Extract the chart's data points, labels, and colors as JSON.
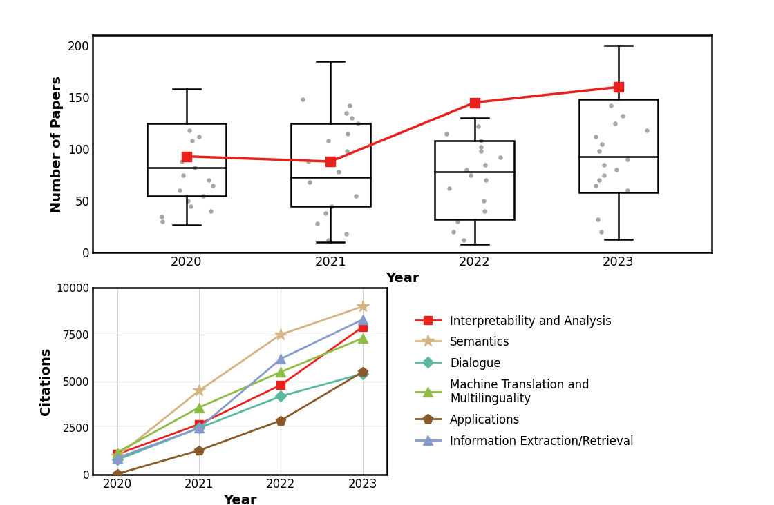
{
  "years": [
    2020,
    2021,
    2022,
    2023
  ],
  "box_data": {
    "2020": {
      "whislo": 27,
      "q1": 55,
      "med": 82,
      "q3": 125,
      "whishi": 158,
      "fliers": [
        118,
        112,
        108,
        95,
        88,
        82,
        75,
        70,
        65,
        60,
        55,
        50,
        45,
        40,
        35,
        30
      ]
    },
    "2021": {
      "whislo": 10,
      "q1": 45,
      "med": 73,
      "q3": 125,
      "whishi": 185,
      "fliers": [
        148,
        142,
        135,
        130,
        125,
        115,
        108,
        98,
        88,
        78,
        68,
        55,
        45,
        38,
        28,
        18,
        12
      ]
    },
    "2022": {
      "whislo": 8,
      "q1": 32,
      "med": 78,
      "q3": 108,
      "whishi": 130,
      "fliers": [
        122,
        115,
        108,
        102,
        98,
        92,
        85,
        80,
        75,
        70,
        62,
        50,
        40,
        30,
        20,
        12
      ]
    },
    "2023": {
      "whislo": 13,
      "q1": 58,
      "med": 93,
      "q3": 148,
      "whishi": 200,
      "fliers": [
        142,
        132,
        125,
        118,
        112,
        105,
        98,
        90,
        85,
        80,
        75,
        70,
        65,
        60,
        32,
        20
      ]
    }
  },
  "red_line_values": [
    93,
    88,
    145,
    160
  ],
  "citations": {
    "Interpretability and Analysis": {
      "color": "#e8211d",
      "marker": "s",
      "values": [
        1100,
        2700,
        4800,
        7900
      ]
    },
    "Semantics": {
      "color": "#d4b483",
      "marker": "*",
      "values": [
        1000,
        4500,
        7500,
        9000
      ]
    },
    "Dialogue": {
      "color": "#5bb8a0",
      "marker": "D",
      "values": [
        800,
        2500,
        4200,
        5400
      ]
    },
    "Machine Translation and\nMultilinguality": {
      "color": "#8fbc45",
      "marker": "^",
      "values": [
        1200,
        3600,
        5500,
        7300
      ]
    },
    "Applications": {
      "color": "#8b5a2b",
      "marker": "p",
      "values": [
        50,
        1300,
        2900,
        5500
      ]
    },
    "Information Extraction/Retrieval": {
      "color": "#8899cc",
      "marker": "^",
      "values": [
        900,
        2500,
        6200,
        8300
      ]
    }
  },
  "legend_labels": [
    "Interpretability and Analysis",
    "Semantics",
    "Dialogue",
    "Machine Translation and\nMultilinguality",
    "Applications",
    "Information Extraction/Retrieval"
  ],
  "top_ylabel": "Number of Papers",
  "top_xlabel": "Year",
  "bottom_ylabel": "Citations",
  "bottom_xlabel": "Year",
  "background_color": "#ffffff"
}
